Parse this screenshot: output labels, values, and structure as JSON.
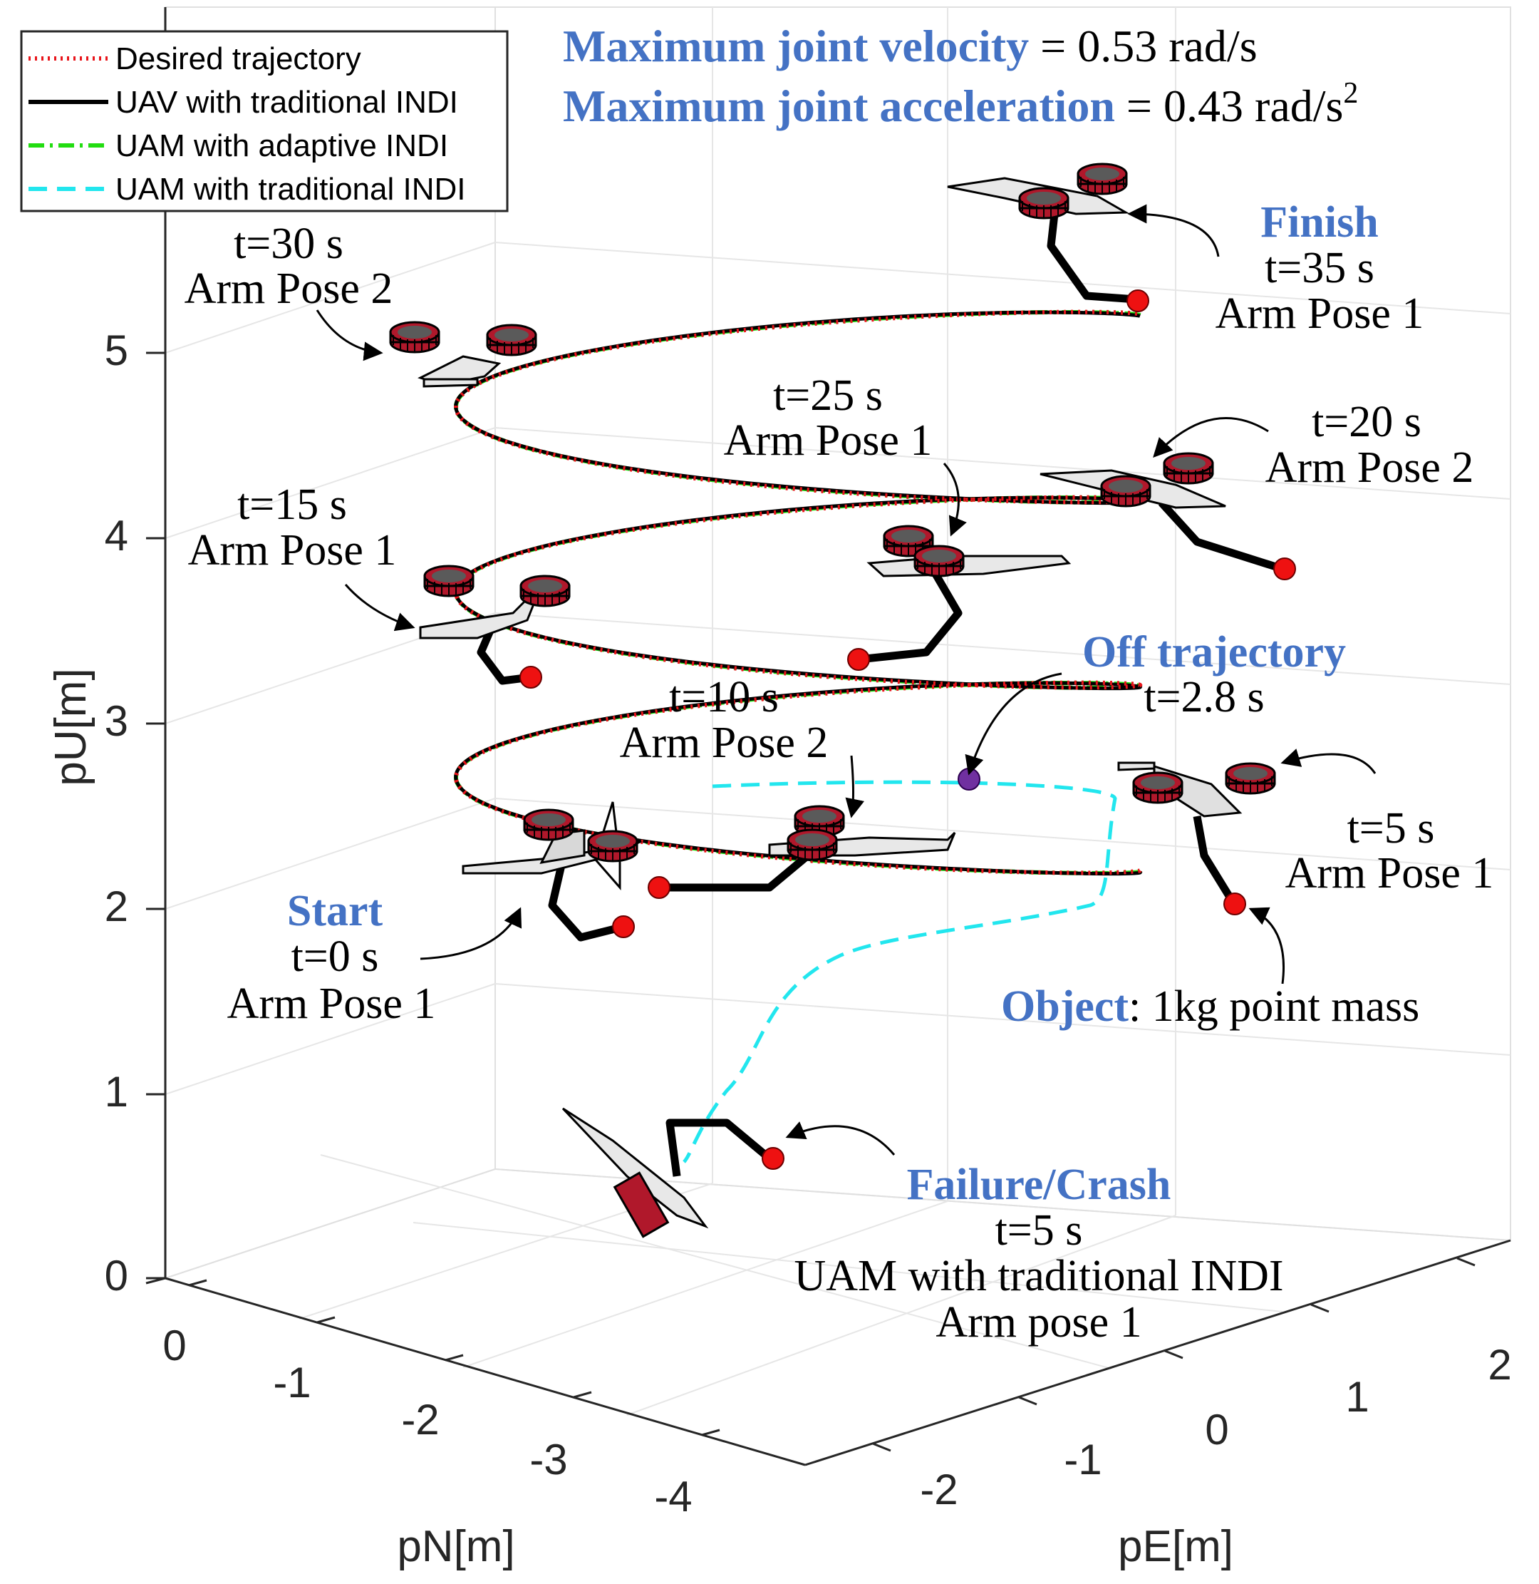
{
  "chart_data": {
    "type": "line",
    "subtype": "3d-trajectory",
    "title_lines": [
      {
        "bold": "Maximum joint velocity",
        "rest": " = 0.53 rad/s"
      },
      {
        "bold": "Maximum joint acceleration",
        "rest": " = 0.43 rad/s",
        "superscript": "2"
      }
    ],
    "axes": {
      "x": {
        "label": "pN[m]",
        "ticks": [
          "0",
          "-1",
          "-2",
          "-3",
          "-4"
        ],
        "range": [
          -4,
          0
        ]
      },
      "y": {
        "label": "pE[m]",
        "ticks": [
          "-2",
          "-1",
          "0",
          "1",
          "2"
        ],
        "range": [
          -2,
          2
        ]
      },
      "z": {
        "label": "pU[m]",
        "ticks": [
          "0",
          "1",
          "2",
          "3",
          "4",
          "5"
        ],
        "range": [
          0,
          5.5
        ]
      },
      "grid": true
    },
    "legend": {
      "position": "top-left",
      "entries": [
        {
          "label": "Desired trajectory",
          "color": "#e8151b",
          "style": "dotted"
        },
        {
          "label": "UAV with traditional INDI",
          "color": "#000000",
          "style": "solid"
        },
        {
          "label": "UAM with adaptive INDI",
          "color": "#22dd11",
          "style": "dash-dot"
        },
        {
          "label": "UAM with traditional INDI",
          "color": "#22e6ee",
          "style": "dashed"
        }
      ]
    },
    "series": [
      {
        "name": "Desired trajectory",
        "shape": "helix",
        "pU_start": 2.5,
        "pU_end": 5.5,
        "turns": 3
      },
      {
        "name": "UAV with traditional INDI",
        "shape": "helix",
        "pU_start": 2.5,
        "pU_end": 5.5,
        "turns": 3
      },
      {
        "name": "UAM with adaptive INDI",
        "shape": "helix",
        "pU_start": 2.5,
        "pU_end": 5.5,
        "turns": 3
      },
      {
        "name": "UAM with traditional INDI",
        "shape": "diverges at t=2.8 s and descends to crash",
        "pU_start": 2.5,
        "pU_end": 0.5
      }
    ],
    "annotations": [
      {
        "id": "start",
        "bold": "Start",
        "lines": [
          "t=0 s",
          "Arm Pose 1"
        ]
      },
      {
        "id": "t5",
        "lines": [
          "t=5 s",
          "Arm Pose 1"
        ]
      },
      {
        "id": "t10",
        "lines": [
          "t=10 s",
          "Arm Pose 2"
        ]
      },
      {
        "id": "t15",
        "lines": [
          "t=15 s",
          "Arm Pose 1"
        ]
      },
      {
        "id": "t20",
        "lines": [
          "t=20 s",
          "Arm Pose 2"
        ]
      },
      {
        "id": "t25",
        "lines": [
          "t=25 s",
          "Arm Pose 1"
        ]
      },
      {
        "id": "t30",
        "lines": [
          "t=30 s",
          "Arm Pose 2"
        ]
      },
      {
        "id": "finish",
        "bold": "Finish",
        "lines": [
          "t=35 s",
          "Arm Pose 1"
        ]
      },
      {
        "id": "off",
        "bold": "Off trajectory",
        "lines": [
          "t=2.8 s"
        ]
      },
      {
        "id": "object",
        "bold": "Object",
        "rest": ": 1kg point mass"
      },
      {
        "id": "crash",
        "bold": "Failure/Crash",
        "lines": [
          "t=5 s",
          "UAM with traditional INDI",
          "Arm pose 1"
        ]
      }
    ],
    "colors": {
      "annotation_bold": "#4472C4",
      "object_marker": "#ee1111",
      "offtraj_marker": "#7030A0",
      "rotor": "#b0182b"
    }
  }
}
